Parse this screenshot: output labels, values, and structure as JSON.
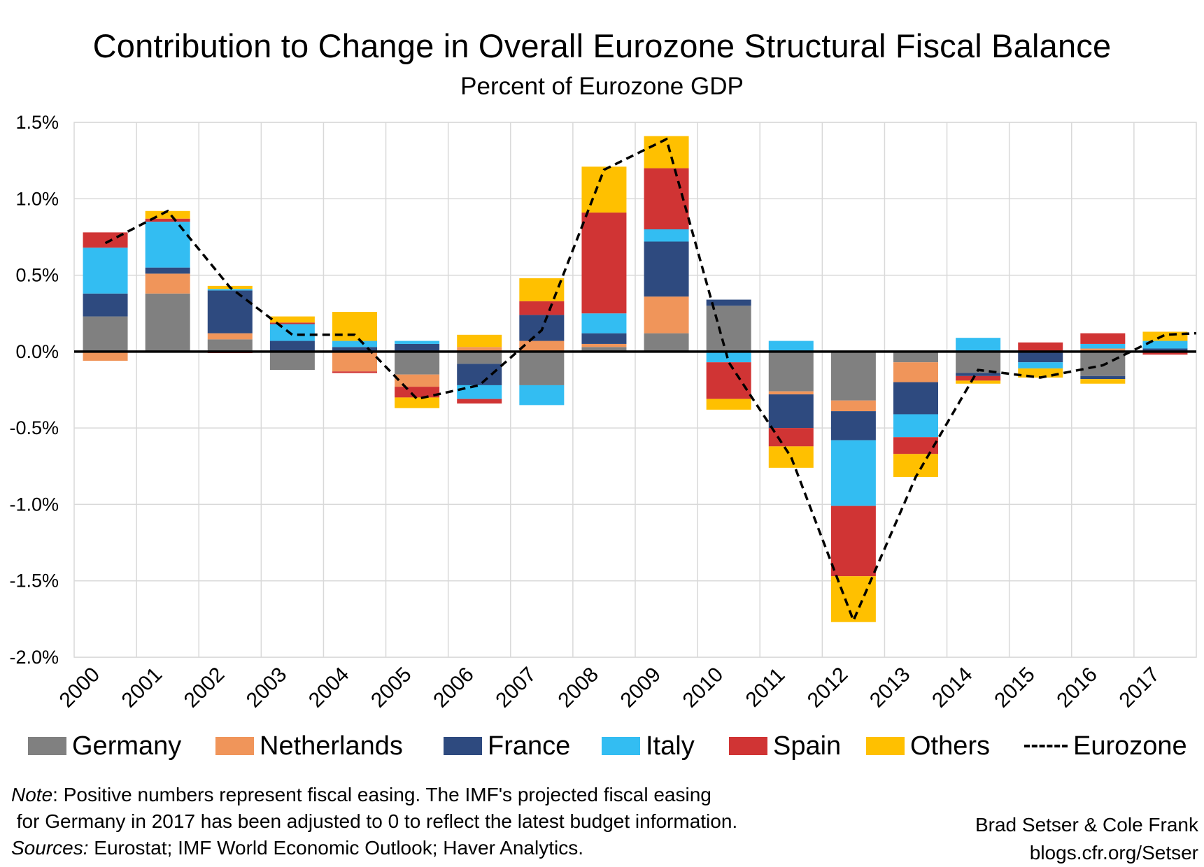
{
  "title": "Contribution to Change in Overall  Eurozone Structural Fiscal Balance",
  "subtitle": "Percent of  Eurozone GDP",
  "chart_data": {
    "type": "bar",
    "stacked": true,
    "title": "Contribution to Change in Overall  Eurozone Structural Fiscal Balance",
    "subtitle": "Percent of  Eurozone GDP",
    "xlabel": "",
    "ylabel": "",
    "ylim": [
      -2.0,
      1.5
    ],
    "y_ticks": [
      "1.5%",
      "1.0%",
      "0.5%",
      "0.0%",
      "-0.5%",
      "-1.0%",
      "-1.5%",
      "-2.0%"
    ],
    "y_tick_values": [
      1.5,
      1.0,
      0.5,
      0.0,
      -0.5,
      -1.0,
      -1.5,
      -2.0
    ],
    "grid": true,
    "legend_position": "bottom",
    "categories": [
      "2000",
      "2001",
      "2002",
      "2003",
      "2004",
      "2005",
      "2006",
      "2007",
      "2008",
      "2009",
      "2010",
      "2011",
      "2012",
      "2013",
      "2014",
      "2015",
      "2016",
      "2017"
    ],
    "series": [
      {
        "name": "Germany",
        "color": "#808080",
        "values": [
          0.23,
          0.38,
          0.08,
          -0.12,
          0.0,
          -0.15,
          -0.08,
          -0.22,
          0.03,
          0.12,
          0.3,
          -0.26,
          -0.32,
          -0.07,
          -0.14,
          0.0,
          -0.16,
          0.0
        ]
      },
      {
        "name": "Netherlands",
        "color": "#F0955A",
        "values": [
          -0.06,
          0.13,
          0.04,
          0.0,
          -0.13,
          -0.08,
          0.03,
          0.07,
          0.02,
          0.24,
          0.0,
          -0.02,
          -0.07,
          -0.13,
          0.0,
          0.0,
          0.02,
          0.0
        ]
      },
      {
        "name": "France",
        "color": "#2E4A7F",
        "values": [
          0.15,
          0.04,
          0.28,
          0.07,
          0.03,
          0.05,
          -0.14,
          0.17,
          0.07,
          0.36,
          0.04,
          -0.22,
          -0.19,
          -0.21,
          -0.02,
          -0.07,
          -0.02,
          0.02
        ]
      },
      {
        "name": "Italy",
        "color": "#33BDF2",
        "values": [
          0.3,
          0.3,
          0.01,
          0.11,
          0.04,
          0.02,
          -0.09,
          -0.13,
          0.13,
          0.08,
          -0.07,
          0.07,
          -0.43,
          -0.15,
          0.09,
          -0.04,
          0.03,
          0.05
        ]
      },
      {
        "name": "Spain",
        "color": "#D03434",
        "values": [
          0.1,
          0.02,
          -0.01,
          0.01,
          -0.01,
          -0.07,
          -0.03,
          0.09,
          0.66,
          0.4,
          -0.24,
          -0.12,
          -0.46,
          -0.11,
          -0.03,
          0.06,
          0.07,
          -0.02
        ]
      },
      {
        "name": "Others",
        "color": "#FFC000",
        "values": [
          0.0,
          0.05,
          0.02,
          0.04,
          0.19,
          -0.07,
          0.08,
          0.15,
          0.3,
          0.21,
          -0.07,
          -0.14,
          -0.3,
          -0.15,
          -0.02,
          -0.06,
          -0.03,
          0.06
        ]
      }
    ],
    "line_series": {
      "name": "Eurozone",
      "style": "dashed",
      "color": "#000000",
      "values": [
        0.71,
        0.92,
        0.42,
        0.11,
        0.11,
        -0.31,
        -0.22,
        0.14,
        1.19,
        1.39,
        -0.07,
        -0.69,
        -1.76,
        -0.82,
        -0.12,
        -0.17,
        -0.09,
        0.11
      ]
    }
  },
  "legend": [
    {
      "label": "Germany",
      "color": "#808080"
    },
    {
      "label": "Netherlands",
      "color": "#F0955A"
    },
    {
      "label": "France",
      "color": "#2E4A7F"
    },
    {
      "label": "Italy",
      "color": "#33BDF2"
    },
    {
      "label": "Spain",
      "color": "#D03434"
    },
    {
      "label": "Others",
      "color": "#FFC000"
    },
    {
      "label": "Eurozone",
      "color": "#000000"
    }
  ],
  "note": {
    "label": "Note",
    "line1": ": Positive numbers represent fiscal easing. The IMF's projected fiscal easing",
    "line2": " for Germany in 2017 has been adjusted to 0 to reflect the latest budget information.",
    "sources_label": "Sources:",
    "sources_text": " Eurostat; IMF World Economic Outlook; Haver Analytics."
  },
  "credit": {
    "authors": "Brad Setser & Cole Frank",
    "url": "blogs.cfr.org/Setser"
  }
}
